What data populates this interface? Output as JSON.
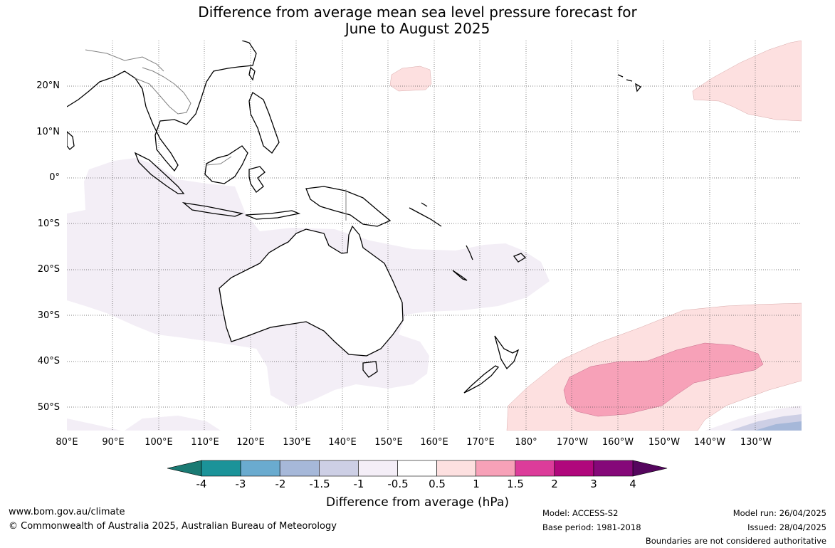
{
  "title": {
    "line1": "Difference from average mean sea level pressure forecast for",
    "line2": "June to August 2025"
  },
  "map": {
    "lon_labels": [
      "80°E",
      "90°E",
      "100°E",
      "110°E",
      "120°E",
      "130°E",
      "140°E",
      "150°E",
      "160°E",
      "170°E",
      "180°",
      "170°W",
      "160°W",
      "150°W",
      "140°W",
      "130°W"
    ],
    "lat_labels": [
      "20°N",
      "10°N",
      "0°",
      "10°S",
      "20°S",
      "30°S",
      "40°S",
      "50°S"
    ],
    "gridlines": true,
    "colors": {
      "coast": "#000000",
      "borders": "#808080",
      "grid": "#555555"
    },
    "anomaly_regions": [
      {
        "area": "Indian Ocean, Indonesia and Australia",
        "level": "-0.5 to -1",
        "color": "#f3eef6"
      },
      {
        "area": "Western Pacific north of the equator (~20°N, 150°E)",
        "level": "0.5 to 1",
        "color": "#fde0e0"
      },
      {
        "area": "Northeast Pacific (~20°N, 140°W)",
        "level": "0.5 to 1",
        "color": "#fde0e0"
      },
      {
        "area": "Southern Pacific (~40–50°S, 175°E–125°W)",
        "level": "0.5 to 1",
        "color": "#fde0e0"
      },
      {
        "area": "Southern Pacific (~45°S, 170°W–135°W)",
        "level": "1 to 1.5",
        "color": "#f7a1b8"
      },
      {
        "area": "Far south-east corner",
        "level": "-0.5 to -1.5",
        "color": "#c9cde3"
      }
    ]
  },
  "colorbar": {
    "ticks": [
      "-4",
      "-3",
      "-2",
      "-1.5",
      "-1",
      "-0.5",
      "0.5",
      "1",
      "1.5",
      "2",
      "3",
      "4"
    ],
    "colors": [
      "#1a7a73",
      "#1b9399",
      "#6aabcf",
      "#a6b8d9",
      "#cdcfe5",
      "#f4eef7",
      "#ffffff",
      "#fde0e0",
      "#f7a1b8",
      "#dc3c9a",
      "#b0077c",
      "#850879",
      "#55065e"
    ],
    "label": "Difference from average (hPa)"
  },
  "footer": {
    "website": "www.bom.gov.au/climate",
    "copyright": "© Commonwealth of Australia 2025, Australian Bureau of Meteorology",
    "model": "Model: ACCESS-S2",
    "base_period": "Base period: 1981-2018",
    "model_run": "Model run: 26/04/2025",
    "issued": "Issued: 28/04/2025",
    "disclaimer": "Boundaries are not considered authoritative"
  }
}
